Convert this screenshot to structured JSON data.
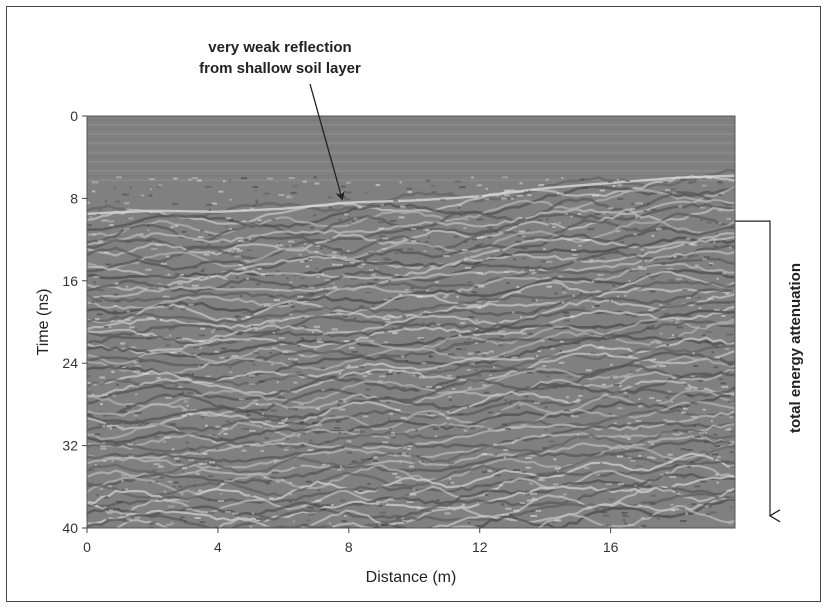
{
  "chart_data": {
    "type": "heatmap",
    "description_kind": "gpr-radargram",
    "colors": {
      "background": "#ffffff",
      "frame": "#444444",
      "text": "#222222",
      "radargram_base": "#808080"
    },
    "xlabel": "Distance (m)",
    "ylabel": "Time (ns)",
    "xlim": [
      0,
      19.8
    ],
    "ylim": [
      0,
      40
    ],
    "x_ticks": [
      0,
      4,
      8,
      12,
      16
    ],
    "y_ticks": [
      0,
      8,
      16,
      24,
      32,
      40
    ],
    "y_inverted": true,
    "grid": false,
    "reflector_profile": {
      "x": [
        0,
        2,
        4,
        6,
        8,
        10,
        12,
        14,
        16,
        18,
        19.8
      ],
      "time_ns": [
        9.5,
        9.2,
        9.3,
        9.0,
        8.4,
        8.2,
        7.8,
        7.0,
        6.5,
        6.0,
        5.8
      ]
    },
    "annotations": [
      {
        "lines": [
          "very weak reflection",
          "from shallow soil layer"
        ],
        "arrow_to": {
          "x": 7.8,
          "y": 8.3
        }
      },
      {
        "text": "total energy attenuation",
        "bracket_from_y": 10.2,
        "arrow_to_y": 39.2
      }
    ]
  }
}
